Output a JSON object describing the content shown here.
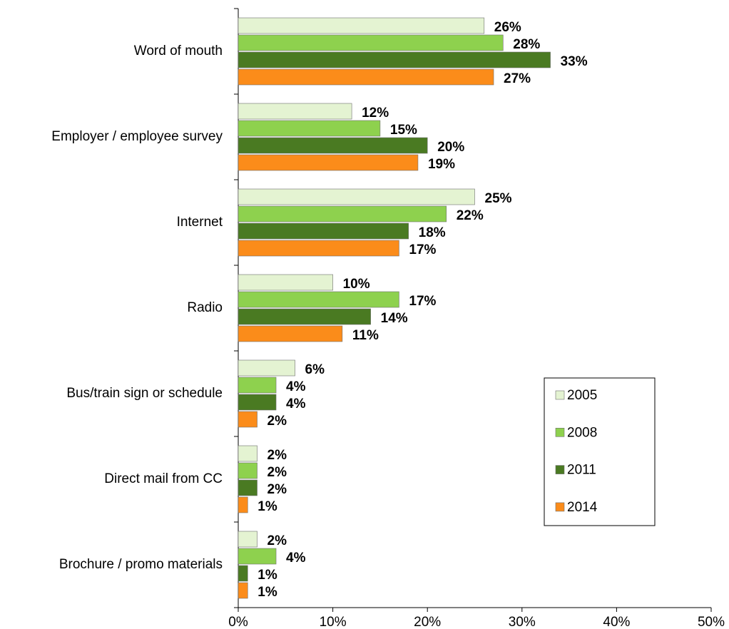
{
  "chart_data": {
    "type": "bar",
    "orientation": "horizontal",
    "categories": [
      "Word of mouth",
      "Employer / employee survey",
      "Internet",
      "Radio",
      "Bus/train sign or schedule",
      "Direct mail from CC",
      "Brochure / promo materials"
    ],
    "series": [
      {
        "name": "2005",
        "color": "#e4f3d2",
        "values": [
          26,
          12,
          25,
          10,
          6,
          2,
          2
        ],
        "value_labels": [
          "26%",
          "12%",
          "25%",
          "10%",
          "6%",
          "2%",
          "2%"
        ]
      },
      {
        "name": "2008",
        "color": "#8ed14e",
        "values": [
          28,
          15,
          22,
          17,
          4,
          2,
          4
        ],
        "value_labels": [
          "28%",
          "15%",
          "22%",
          "17%",
          "4%",
          "2%",
          "4%"
        ]
      },
      {
        "name": "2011",
        "color": "#4a7a22",
        "values": [
          33,
          20,
          18,
          14,
          4,
          2,
          1
        ],
        "value_labels": [
          "33%",
          "20%",
          "18%",
          "14%",
          "4%",
          "2%",
          "1%"
        ]
      },
      {
        "name": "2014",
        "color": "#fb8c1a",
        "values": [
          27,
          19,
          17,
          11,
          2,
          1,
          1
        ],
        "value_labels": [
          "27%",
          "19%",
          "17%",
          "11%",
          "2%",
          "1%",
          "1%"
        ]
      }
    ],
    "xlim": [
      0,
      50
    ],
    "xticks": [
      {
        "value": 0,
        "label": "0%"
      },
      {
        "value": 10,
        "label": "10%"
      },
      {
        "value": 20,
        "label": "20%"
      },
      {
        "value": 30,
        "label": "30%"
      },
      {
        "value": 40,
        "label": "40%"
      },
      {
        "value": 50,
        "label": "50%"
      }
    ],
    "legend": "right"
  }
}
